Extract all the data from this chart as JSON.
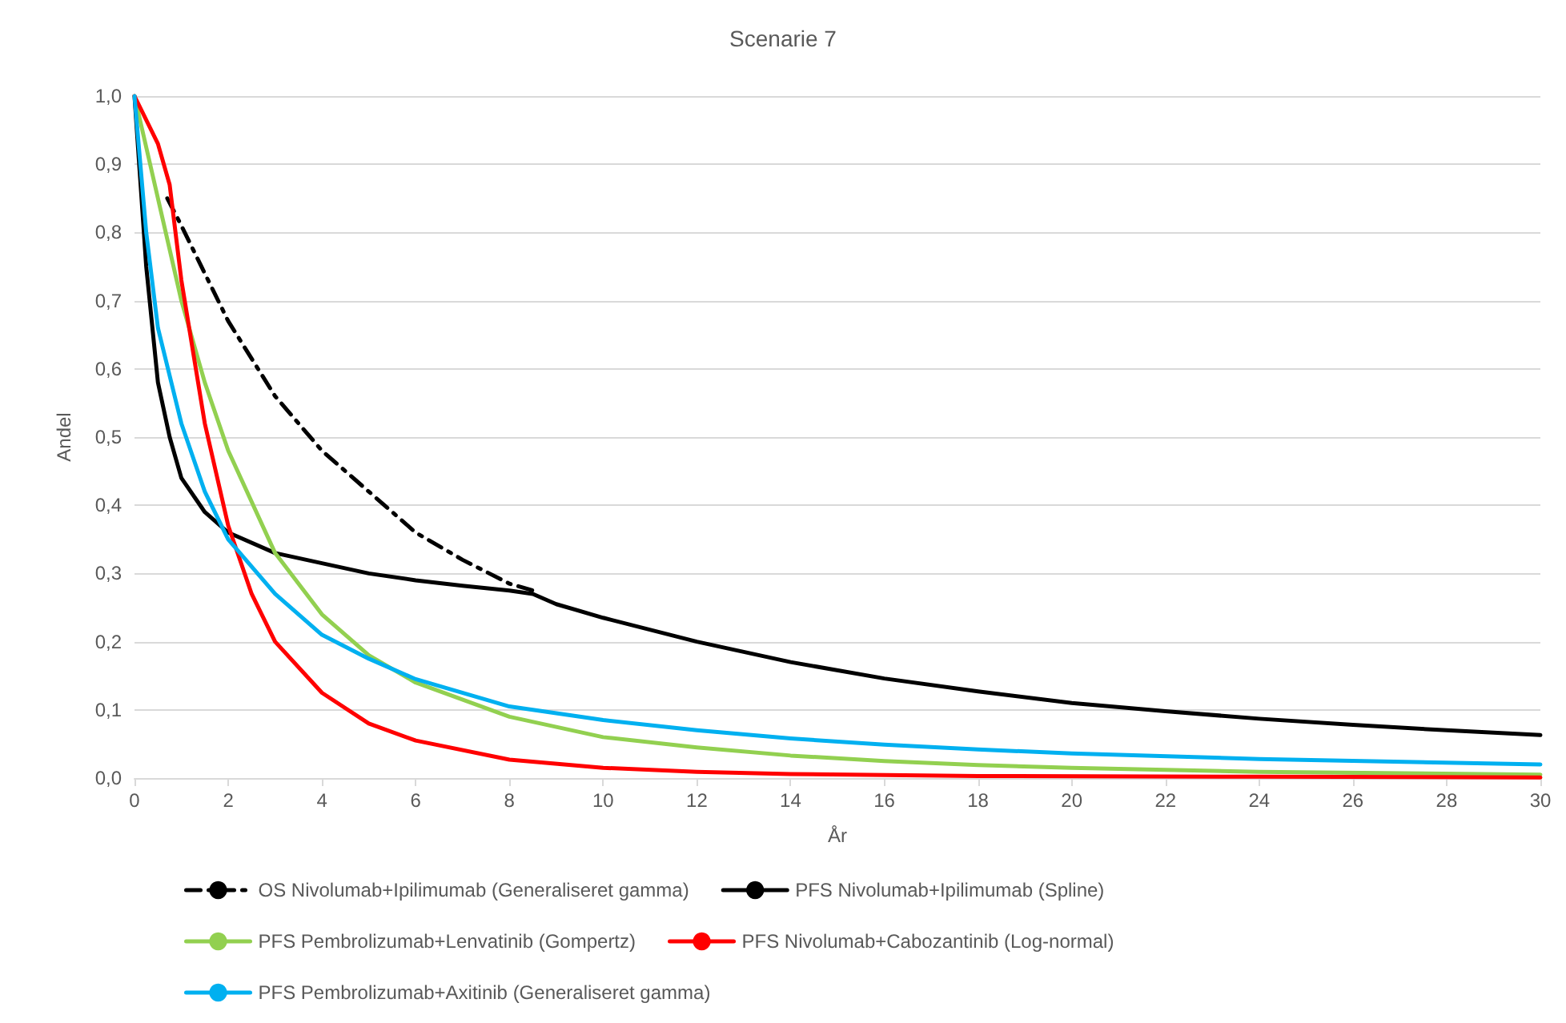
{
  "chart_data": {
    "type": "line",
    "title": "Scenarie 7",
    "xlabel": "År",
    "ylabel": "Andel",
    "xlim": [
      0,
      30
    ],
    "xticks": [
      0,
      2,
      4,
      6,
      8,
      10,
      12,
      14,
      16,
      18,
      20,
      22,
      24,
      26,
      28,
      30
    ],
    "ylim": [
      0,
      1
    ],
    "yticks": [
      {
        "value": 0,
        "label": "0,0"
      },
      {
        "value": 0.1,
        "label": "0,1"
      },
      {
        "value": 0.2,
        "label": "0,2"
      },
      {
        "value": 0.3,
        "label": "0,3"
      },
      {
        "value": 0.4,
        "label": "0,4"
      },
      {
        "value": 0.5,
        "label": "0,5"
      },
      {
        "value": 0.6,
        "label": "0,6"
      },
      {
        "value": 0.7,
        "label": "0,7"
      },
      {
        "value": 0.8,
        "label": "0,8"
      },
      {
        "value": 0.9,
        "label": "0,9"
      },
      {
        "value": 1,
        "label": "1,0"
      }
    ],
    "grid": "y",
    "legend": "bottom",
    "marker": "none",
    "series": [
      {
        "name": "OS Nivolumab+Ipilimumab (Generaliseret gamma)",
        "color": "#000000",
        "line_style": "dashed",
        "x": [
          0.7,
          1,
          2,
          3,
          4,
          5,
          6,
          7,
          8,
          8.5
        ],
        "values": [
          0.85,
          0.81,
          0.67,
          0.56,
          0.48,
          0.42,
          0.36,
          0.32,
          0.285,
          0.275
        ]
      },
      {
        "name": "PFS Nivolumab+Ipilimumab (Spline)",
        "color": "#000000",
        "line_style": "solid",
        "x": [
          0,
          0.25,
          0.5,
          0.75,
          1,
          1.5,
          2,
          3,
          4,
          5,
          6,
          7,
          8,
          8.5,
          9,
          10,
          12,
          14,
          16,
          18,
          20,
          22,
          24,
          26,
          28,
          30
        ],
        "values": [
          1,
          0.75,
          0.58,
          0.5,
          0.44,
          0.39,
          0.36,
          0.33,
          0.315,
          0.3,
          0.29,
          0.282,
          0.275,
          0.27,
          0.255,
          0.235,
          0.2,
          0.17,
          0.146,
          0.127,
          0.11,
          0.098,
          0.087,
          0.078,
          0.07,
          0.063
        ]
      },
      {
        "name": "PFS Pembrolizumab+Lenvatinib (Gompertz)",
        "color": "#92d050",
        "line_style": "solid",
        "x": [
          0,
          0.5,
          1,
          1.5,
          2,
          3,
          4,
          5,
          6,
          8,
          10,
          12,
          14,
          16,
          18,
          20,
          24,
          30
        ],
        "values": [
          1,
          0.85,
          0.7,
          0.58,
          0.48,
          0.33,
          0.24,
          0.18,
          0.14,
          0.09,
          0.06,
          0.045,
          0.033,
          0.025,
          0.019,
          0.015,
          0.009,
          0.005
        ]
      },
      {
        "name": "PFS Nivolumab+Cabozantinib (Log-normal)",
        "color": "#ff0000",
        "line_style": "solid",
        "x": [
          0,
          0.5,
          0.75,
          1,
          1.5,
          2,
          2.5,
          3,
          4,
          5,
          6,
          8,
          10,
          12,
          14,
          18,
          24,
          30
        ],
        "values": [
          1,
          0.93,
          0.87,
          0.73,
          0.52,
          0.37,
          0.27,
          0.2,
          0.125,
          0.08,
          0.055,
          0.027,
          0.015,
          0.009,
          0.006,
          0.003,
          0.002,
          0.001
        ]
      },
      {
        "name": "PFS Pembrolizumab+Axitinib (Generaliseret gamma)",
        "color": "#00b0f0",
        "line_style": "solid",
        "x": [
          0,
          0.25,
          0.5,
          1,
          1.5,
          2,
          3,
          4,
          5,
          6,
          8,
          10,
          12,
          14,
          16,
          18,
          20,
          24,
          30
        ],
        "values": [
          1,
          0.8,
          0.66,
          0.52,
          0.42,
          0.35,
          0.27,
          0.21,
          0.175,
          0.145,
          0.105,
          0.085,
          0.07,
          0.058,
          0.049,
          0.042,
          0.036,
          0.028,
          0.02
        ]
      }
    ]
  }
}
